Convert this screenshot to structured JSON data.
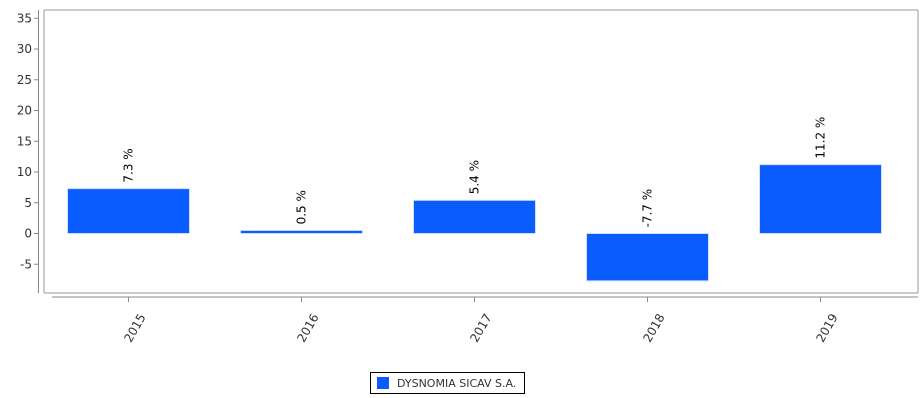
{
  "colors": {
    "bar": "#0a5cff",
    "axis": "#888888",
    "text": "#000000"
  },
  "chart_data": {
    "type": "bar",
    "title": "",
    "xlabel": "",
    "ylabel": "",
    "categories": [
      "2015",
      "2016",
      "2017",
      "2018",
      "2019"
    ],
    "series": [
      {
        "name": "DYSNOMIA SICAV S.A.",
        "values": [
          7.3,
          0.5,
          5.4,
          -7.7,
          11.2
        ],
        "labels": [
          "7.3 %",
          "0.5 %",
          "5.4 %",
          "-7.7 %",
          "11.2 %"
        ]
      }
    ],
    "yticks": [
      35,
      30,
      25,
      20,
      15,
      10,
      5,
      0,
      -5
    ],
    "ylim": [
      -10,
      36
    ],
    "grid": false,
    "legend": "bottom-center"
  }
}
